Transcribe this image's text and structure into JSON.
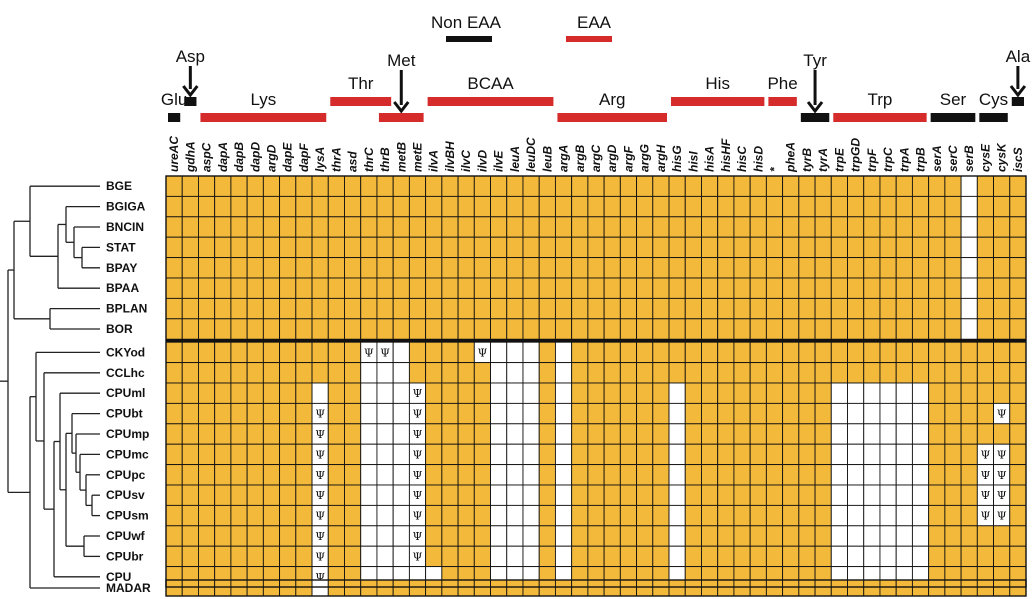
{
  "colors": {
    "present": "#f3b93a",
    "absent": "#ffffff",
    "grid": "#111111",
    "eaa_bar": "#d62b2b",
    "noneaa_bar": "#111111",
    "tree": "#222222"
  },
  "legend": [
    {
      "label": "Non EAA",
      "kind": "noneaa"
    },
    {
      "label": "EAA",
      "kind": "eaa"
    }
  ],
  "genes": [
    "ureAC",
    "gdhA",
    "aspC",
    "dapA",
    "dapB",
    "dapD",
    "argD",
    "dapE",
    "dapF",
    "lysA",
    "thrA",
    "asd",
    "thrC",
    "thrB",
    "metB",
    "metE",
    "ilvA",
    "ilvBH",
    "ilvC",
    "ilvD",
    "ilvE",
    "leuA",
    "leuDC",
    "leuB",
    "argA",
    "argB",
    "argC",
    "argD",
    "argF",
    "argG",
    "argH",
    "hisG",
    "hisI",
    "hisA",
    "hisHF",
    "hisC",
    "hisD",
    "*",
    "pheA",
    "tyrB",
    "tyrA",
    "trpE",
    "trpGD",
    "trpF",
    "trpC",
    "trpA",
    "trpB",
    "serA",
    "serC",
    "serB",
    "cysE",
    "cysK",
    "iscS"
  ],
  "groups": [
    {
      "label": "Glu",
      "kind": "noneaa",
      "start": 0,
      "end": 0,
      "arrow": false
    },
    {
      "label": "Asp",
      "kind": "noneaa",
      "start": 1,
      "end": 1,
      "arrow": true
    },
    {
      "label": "Lys",
      "kind": "eaa",
      "start": 2,
      "end": 9,
      "arrow": false
    },
    {
      "label": "Thr",
      "kind": "eaa",
      "start": 10,
      "end": 13,
      "arrow": false
    },
    {
      "label": "Met",
      "kind": "eaa",
      "start": 13,
      "end": 15,
      "arrow": true
    },
    {
      "label": "BCAA",
      "kind": "eaa",
      "start": 16,
      "end": 23,
      "arrow": false
    },
    {
      "label": "Arg",
      "kind": "eaa",
      "start": 24,
      "end": 30,
      "arrow": false
    },
    {
      "label": "His",
      "kind": "eaa",
      "start": 31,
      "end": 36,
      "arrow": false
    },
    {
      "label": "Phe",
      "kind": "eaa",
      "start": 37,
      "end": 38,
      "arrow": false
    },
    {
      "label": "Tyr",
      "kind": "noneaa",
      "start": 39,
      "end": 40,
      "arrow": true
    },
    {
      "label": "Trp",
      "kind": "eaa",
      "start": 41,
      "end": 46,
      "arrow": false
    },
    {
      "label": "Ser",
      "kind": "noneaa",
      "start": 47,
      "end": 49,
      "arrow": false
    },
    {
      "label": "Cys",
      "kind": "noneaa",
      "start": 50,
      "end": 51,
      "arrow": false
    },
    {
      "label": "Ala",
      "kind": "noneaa",
      "start": 52,
      "end": 52,
      "arrow": true
    }
  ],
  "taxa": [
    "BGE",
    "BGIGA",
    "BNCIN",
    "STAT",
    "BPAY",
    "BPAA",
    "BPLAN",
    "BOR",
    "CKYod",
    "CCLhc",
    "CPUml",
    "CPUbt",
    "CPUmp",
    "CPUmc",
    "CPUpc",
    "CPUsv",
    "CPUsm",
    "CPUwf",
    "CPUbr",
    "CPU",
    "MADAR"
  ],
  "psi_symbol": "Ψ",
  "matrix": [
    "11111111111111111111111111111111111111111111111110111",
    "11111111111111111111111111111111111111111111111110111",
    "11111111111111111111111111111111111111111111111110111",
    "11111111111111111111111111111111111111111111111110111",
    "11111111111111111111111111111111111111111111111110111",
    "11111111111111111111111111111111111111111111111110111",
    "11111111111111111111111111111111111111111111111110111",
    "11111111111111111111111111111111111111111111111110111",
    "11111111111100011111000101111111111111111111111111111",
    "11111111111100011111000101111111111111111111111111111",
    "11111111111100011111000101111110111111111000000111111",
    "11111111111100011111000101111110111111111000000111111",
    "11111111111100011111000101111110111111111000000111111",
    "11111111111100011111000101111110111111111000000111111",
    "11111111111100011111000101111110111111111000000111111",
    "11111111111100011111000101111110111111111000000111111",
    "11111111111100011111000101111110111111111000000111111",
    "11111111111100011111000101111110111111111000000111111",
    "11111111111100011111000101111110111111111000000111111",
    "11111111111100011111000101111110111111111000000111111",
    "11111111111111111111111111111111111111111111111111111"
  ],
  "psi_cells": [
    [
      8,
      12
    ],
    [
      8,
      13
    ],
    [
      8,
      19
    ],
    [
      10,
      15
    ],
    [
      11,
      9
    ],
    [
      11,
      15
    ],
    [
      11,
      51
    ],
    [
      12,
      9
    ],
    [
      12,
      15
    ],
    [
      13,
      9
    ],
    [
      13,
      15
    ],
    [
      13,
      50
    ],
    [
      13,
      51
    ],
    [
      14,
      9
    ],
    [
      14,
      15
    ],
    [
      14,
      50
    ],
    [
      14,
      51
    ],
    [
      15,
      9
    ],
    [
      15,
      15
    ],
    [
      15,
      50
    ],
    [
      15,
      51
    ],
    [
      16,
      9
    ],
    [
      16,
      15
    ],
    [
      16,
      50
    ],
    [
      16,
      51
    ],
    [
      17,
      9
    ],
    [
      17,
      15
    ],
    [
      18,
      9
    ],
    [
      18,
      15
    ],
    [
      19,
      9
    ]
  ],
  "absent_overrides": [
    [
      10,
      9
    ],
    [
      19,
      15
    ],
    [
      19,
      16
    ],
    [
      20,
      9
    ],
    [
      8,
      14
    ],
    [
      9,
      12
    ],
    [
      9,
      13
    ],
    [
      9,
      14
    ]
  ]
}
